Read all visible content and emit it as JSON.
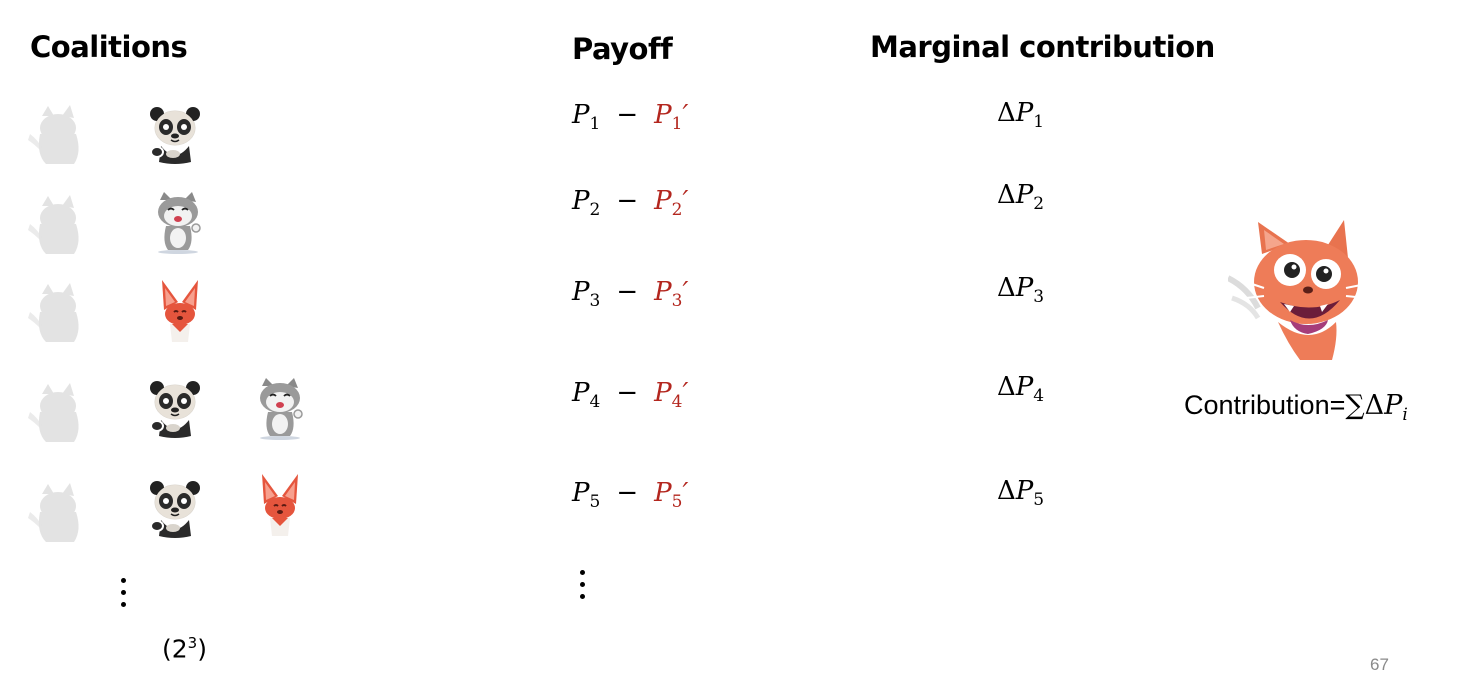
{
  "headers": {
    "coalitions": "Coalitions",
    "payoff": "Payoff",
    "marginal": "Marginal contribution"
  },
  "rows": [
    {
      "members": [
        "panda-icon"
      ],
      "payoff": {
        "p": "P",
        "sub": "1",
        "p2": "P",
        "sub2": "1",
        "prime": "′"
      },
      "delta": {
        "d": "Δ",
        "p": "P",
        "sub": "1"
      }
    },
    {
      "members": [
        "cat-icon"
      ],
      "payoff": {
        "p": "P",
        "sub": "2",
        "p2": "P",
        "sub2": "2",
        "prime": "′"
      },
      "delta": {
        "d": "Δ",
        "p": "P",
        "sub": "2"
      }
    },
    {
      "members": [
        "fox-icon"
      ],
      "payoff": {
        "p": "P",
        "sub": "3",
        "p2": "P",
        "sub2": "3",
        "prime": "′"
      },
      "delta": {
        "d": "Δ",
        "p": "P",
        "sub": "3"
      }
    },
    {
      "members": [
        "panda-icon",
        "cat-icon"
      ],
      "payoff": {
        "p": "P",
        "sub": "4",
        "p2": "P",
        "sub2": "4",
        "prime": "′"
      },
      "delta": {
        "d": "Δ",
        "p": "P",
        "sub": "4"
      }
    },
    {
      "members": [
        "panda-icon",
        "fox-icon"
      ],
      "payoff": {
        "p": "P",
        "sub": "5",
        "p2": "P",
        "sub2": "5",
        "prime": "′"
      },
      "delta": {
        "d": "Δ",
        "p": "P",
        "sub": "5"
      }
    }
  ],
  "minus": "−",
  "count": {
    "base": "(2",
    "exp": "3",
    "close": ")"
  },
  "contribution": {
    "label": "Contribution=",
    "sum": "∑",
    "delta": "Δ",
    "p": "P",
    "sub": "i"
  },
  "page_number": "67",
  "colors": {
    "accent_red": "#b3261e",
    "faded_cat": "#e3e3e3"
  }
}
